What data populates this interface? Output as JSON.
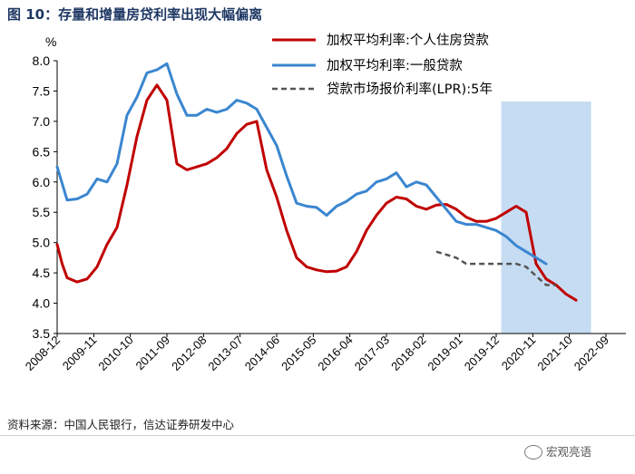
{
  "title": "图 10：存量和增量房贷利率出现大幅偏离",
  "source": "资料来源：中国人民银行，信达证券研发中心",
  "watermark": "宏观亮语",
  "chart_data": {
    "type": "line",
    "ylabel": "%",
    "ylim": [
      3.5,
      8.0
    ],
    "yticks": [
      "3.5",
      "4.0",
      "4.5",
      "5.0",
      "5.5",
      "6.0",
      "6.5",
      "7.0",
      "7.5",
      "8.0"
    ],
    "xlim": [
      0,
      57
    ],
    "x_tick_labels": [
      {
        "label": "2008-12",
        "x": 0
      },
      {
        "label": "2009-11",
        "x": 3.67
      },
      {
        "label": "2010-10",
        "x": 7.33
      },
      {
        "label": "2011-09",
        "x": 11
      },
      {
        "label": "2012-08",
        "x": 14.67
      },
      {
        "label": "2013-07",
        "x": 18.33
      },
      {
        "label": "2014-06",
        "x": 22
      },
      {
        "label": "2015-05",
        "x": 25.67
      },
      {
        "label": "2016-04",
        "x": 29.33
      },
      {
        "label": "2017-03",
        "x": 33
      },
      {
        "label": "2018-02",
        "x": 36.67
      },
      {
        "label": "2019-01",
        "x": 40.33
      },
      {
        "label": "2019-12",
        "x": 44
      },
      {
        "label": "2020-11",
        "x": 47.67
      },
      {
        "label": "2021-10",
        "x": 51.33
      },
      {
        "label": "2022-09",
        "x": 55
      }
    ],
    "shaded_region": {
      "x_start": 44.5,
      "x_end": 53.5,
      "color": "#c6dcf3"
    },
    "series": [
      {
        "name": "加权平均利率:个人住房贷款",
        "color": "#c00000",
        "dash": "solid",
        "points": [
          [
            0,
            4.97
          ],
          [
            0.5,
            4.65
          ],
          [
            1,
            4.42
          ],
          [
            2,
            4.35
          ],
          [
            3,
            4.4
          ],
          [
            4,
            4.6
          ],
          [
            5,
            4.97
          ],
          [
            6,
            5.25
          ],
          [
            7,
            5.95
          ],
          [
            8,
            6.75
          ],
          [
            9,
            7.35
          ],
          [
            10,
            7.6
          ],
          [
            11,
            7.35
          ],
          [
            12,
            6.3
          ],
          [
            13,
            6.2
          ],
          [
            14,
            6.25
          ],
          [
            15,
            6.3
          ],
          [
            16,
            6.4
          ],
          [
            17,
            6.55
          ],
          [
            18,
            6.8
          ],
          [
            19,
            6.95
          ],
          [
            20,
            7.0
          ],
          [
            21,
            6.2
          ],
          [
            22,
            5.75
          ],
          [
            23,
            5.2
          ],
          [
            24,
            4.75
          ],
          [
            25,
            4.6
          ],
          [
            26,
            4.55
          ],
          [
            27,
            4.52
          ],
          [
            28,
            4.53
          ],
          [
            29,
            4.6
          ],
          [
            30,
            4.85
          ],
          [
            31,
            5.2
          ],
          [
            32,
            5.45
          ],
          [
            33,
            5.65
          ],
          [
            34,
            5.75
          ],
          [
            35,
            5.72
          ],
          [
            36,
            5.6
          ],
          [
            37,
            5.55
          ],
          [
            38,
            5.62
          ],
          [
            39,
            5.63
          ],
          [
            40,
            5.55
          ],
          [
            41,
            5.42
          ],
          [
            42,
            5.35
          ],
          [
            43,
            5.35
          ],
          [
            44,
            5.4
          ],
          [
            45,
            5.5
          ],
          [
            46,
            5.6
          ],
          [
            47,
            5.5
          ],
          [
            48,
            4.65
          ],
          [
            49,
            4.4
          ],
          [
            50,
            4.3
          ],
          [
            51,
            4.15
          ],
          [
            52,
            4.05
          ]
        ]
      },
      {
        "name": "加权平均利率:一般贷款",
        "color": "#3a86d0",
        "dash": "solid",
        "points": [
          [
            0,
            6.25
          ],
          [
            1,
            5.7
          ],
          [
            2,
            5.72
          ],
          [
            3,
            5.8
          ],
          [
            4,
            6.05
          ],
          [
            5,
            6.0
          ],
          [
            6,
            6.3
          ],
          [
            7,
            7.1
          ],
          [
            8,
            7.4
          ],
          [
            9,
            7.8
          ],
          [
            10,
            7.85
          ],
          [
            11,
            7.95
          ],
          [
            12,
            7.45
          ],
          [
            13,
            7.1
          ],
          [
            14,
            7.1
          ],
          [
            15,
            7.2
          ],
          [
            16,
            7.15
          ],
          [
            17,
            7.2
          ],
          [
            18,
            7.35
          ],
          [
            19,
            7.3
          ],
          [
            20,
            7.2
          ],
          [
            21,
            6.9
          ],
          [
            22,
            6.6
          ],
          [
            23,
            6.1
          ],
          [
            24,
            5.65
          ],
          [
            25,
            5.6
          ],
          [
            26,
            5.58
          ],
          [
            27,
            5.45
          ],
          [
            28,
            5.6
          ],
          [
            29,
            5.68
          ],
          [
            30,
            5.8
          ],
          [
            31,
            5.85
          ],
          [
            32,
            6.0
          ],
          [
            33,
            6.05
          ],
          [
            34,
            6.15
          ],
          [
            35,
            5.92
          ],
          [
            36,
            6.0
          ],
          [
            37,
            5.95
          ],
          [
            38,
            5.75
          ],
          [
            39,
            5.55
          ],
          [
            40,
            5.35
          ],
          [
            41,
            5.3
          ],
          [
            42,
            5.3
          ],
          [
            43,
            5.25
          ],
          [
            44,
            5.2
          ],
          [
            45,
            5.1
          ],
          [
            46,
            4.95
          ],
          [
            47,
            4.85
          ],
          [
            48,
            4.75
          ],
          [
            49,
            4.65
          ]
        ]
      },
      {
        "name": "贷款市场报价利率(LPR):5年",
        "color": "#555555",
        "dash": "dashed",
        "points": [
          [
            38,
            4.85
          ],
          [
            39,
            4.8
          ],
          [
            40,
            4.75
          ],
          [
            41,
            4.65
          ],
          [
            42,
            4.65
          ],
          [
            43,
            4.65
          ],
          [
            44,
            4.65
          ],
          [
            45,
            4.65
          ],
          [
            46,
            4.65
          ],
          [
            47,
            4.6
          ],
          [
            48,
            4.45
          ],
          [
            49,
            4.3
          ],
          [
            50,
            4.3
          ]
        ]
      }
    ]
  }
}
